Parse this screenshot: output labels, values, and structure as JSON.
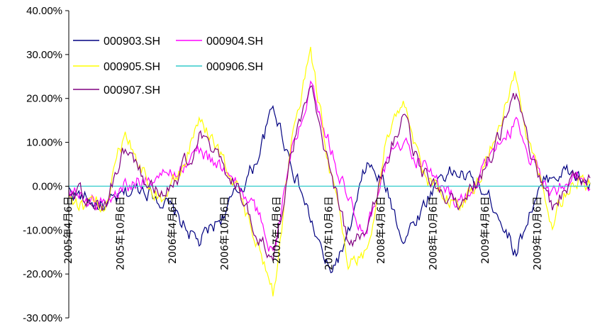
{
  "chart_data": {
    "type": "line",
    "title": "",
    "xlabel": "",
    "ylabel": "",
    "ylim": [
      -30,
      40
    ],
    "y_tick_values": [
      -30,
      -20,
      -10,
      0,
      10,
      20,
      30,
      40
    ],
    "y_tick_labels": [
      "-30.00%",
      "-20.00%",
      "-10.00%",
      "0.00%",
      "10.00%",
      "20.00%",
      "30.00%",
      "40.00%"
    ],
    "x_tick_labels": [
      "2005年4月6日",
      "2005年10月6日",
      "2006年4月6日",
      "2006年10月6日",
      "2007年4月6日",
      "2007年10月6日",
      "2008年4月6日",
      "2008年10月6日",
      "2009年4月6日",
      "2009年10月6日"
    ],
    "x": [
      "2005-04",
      "2005-06",
      "2005-08",
      "2005-10",
      "2005-12",
      "2006-02",
      "2006-04",
      "2006-06",
      "2006-08",
      "2006-10",
      "2006-12",
      "2007-02",
      "2007-04",
      "2007-06",
      "2007-08",
      "2007-10",
      "2007-12",
      "2008-02",
      "2008-04",
      "2008-06",
      "2008-08",
      "2008-10",
      "2008-12",
      "2009-02",
      "2009-04",
      "2009-06",
      "2009-08",
      "2009-10",
      "2009-12"
    ],
    "legend_position": "top-left",
    "grid": false,
    "series": [
      {
        "name": "000903.SH",
        "color": "#000080",
        "values": [
          -1,
          -3,
          -5,
          -2,
          0,
          -3,
          -8,
          -13,
          -8,
          -2,
          5,
          18,
          5,
          -8,
          -20,
          -12,
          5,
          0,
          -12,
          -5,
          3,
          3,
          0,
          -5,
          -15,
          -3,
          3,
          3,
          0
        ]
      },
      {
        "name": "000904.SH",
        "color": "#ff00ff",
        "values": [
          -1,
          -3,
          -4,
          0,
          2,
          2,
          4,
          8,
          5,
          0,
          -5,
          -15,
          8,
          25,
          10,
          -3,
          -10,
          5,
          10,
          5,
          0,
          -4,
          2,
          8,
          15,
          5,
          -2,
          3,
          1
        ]
      },
      {
        "name": "000905.SH",
        "color": "#ffff00",
        "values": [
          -2,
          -5,
          -4,
          12,
          3,
          -3,
          3,
          15,
          8,
          0,
          -12,
          -25,
          12,
          30,
          5,
          -18,
          -15,
          10,
          20,
          3,
          -2,
          -5,
          2,
          12,
          25,
          5,
          -8,
          2,
          1
        ]
      },
      {
        "name": "000906.SH",
        "color": "#33cccc",
        "values": [
          0,
          0,
          0,
          0,
          0,
          0,
          0,
          0,
          0,
          0,
          0,
          0,
          0,
          0,
          0,
          0,
          0,
          0,
          0,
          0,
          0,
          0,
          0,
          0,
          0,
          0,
          0,
          0,
          0
        ]
      },
      {
        "name": "000907.SH",
        "color": "#800080",
        "values": [
          -1,
          -3,
          -4,
          8,
          2,
          -2,
          3,
          11,
          6,
          0,
          -10,
          -18,
          8,
          22,
          5,
          -12,
          -12,
          6,
          16,
          3,
          -1,
          -4,
          1,
          10,
          20,
          4,
          -5,
          2,
          1
        ]
      }
    ]
  }
}
